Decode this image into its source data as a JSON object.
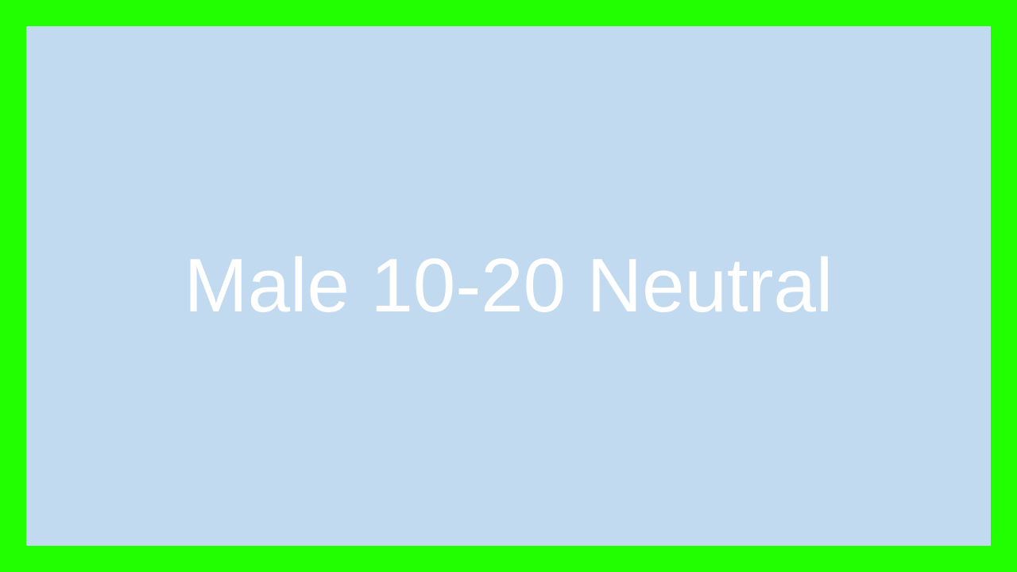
{
  "panel": {
    "label": "Male 10-20 Neutral"
  },
  "colors": {
    "border": "#22ff00",
    "panel": "#c2daef",
    "text": "#ffffff"
  }
}
